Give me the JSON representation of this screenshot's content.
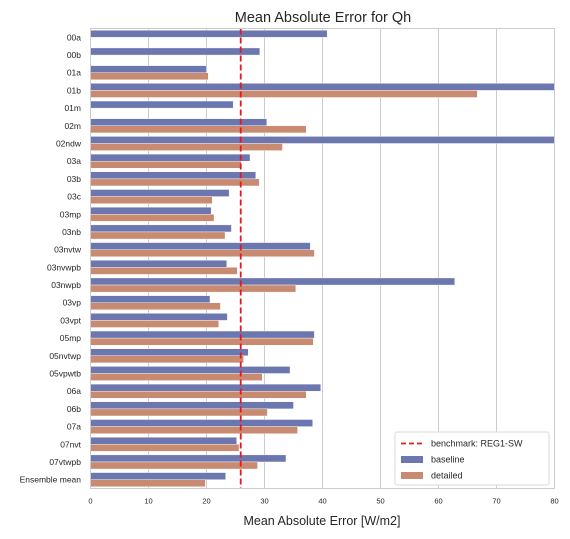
{
  "chart_data": {
    "type": "bar",
    "orientation": "horizontal",
    "title": "Mean Absolute Error for Qh",
    "xlabel": "Mean Absolute Error [W/m2]",
    "ylabel": "",
    "xlim": [
      0,
      80
    ],
    "xticks": [
      0,
      10,
      20,
      30,
      40,
      50,
      60,
      70,
      80
    ],
    "grid": "vertical",
    "legend_position": "bottom-right",
    "categories": [
      "00a",
      "00b",
      "01a",
      "01b",
      "01m",
      "02m",
      "02ndw",
      "03a",
      "03b",
      "03c",
      "03mp",
      "03nb",
      "03nvtw",
      "03nvwpb",
      "03nwpb",
      "03vp",
      "03vpt",
      "05mp",
      "05nvtwp",
      "05vpwtb",
      "06a",
      "06b",
      "07a",
      "07nvt",
      "07vtwpb",
      "Ensemble mean"
    ],
    "series": [
      {
        "name": "baseline",
        "color": "#6b77ae",
        "values": [
          40.8,
          29.2,
          20.0,
          80.0,
          24.6,
          30.4,
          80.0,
          27.5,
          28.5,
          23.9,
          20.8,
          24.3,
          37.9,
          23.5,
          62.8,
          20.6,
          23.6,
          38.6,
          27.2,
          34.4,
          39.7,
          35.0,
          38.3,
          25.2,
          33.7,
          23.3
        ]
      },
      {
        "name": "detailed",
        "color": "#c98a72",
        "values": [
          null,
          null,
          20.3,
          66.7,
          null,
          37.2,
          33.1,
          26.0,
          29.1,
          21.0,
          21.3,
          23.2,
          38.6,
          25.3,
          35.4,
          22.4,
          22.1,
          38.4,
          26.4,
          29.6,
          37.2,
          30.5,
          35.7,
          25.6,
          28.8,
          19.8
        ]
      }
    ],
    "benchmark": {
      "label": "benchmark: REG1-SW",
      "value": 25.9,
      "color": "#e8171b"
    }
  }
}
